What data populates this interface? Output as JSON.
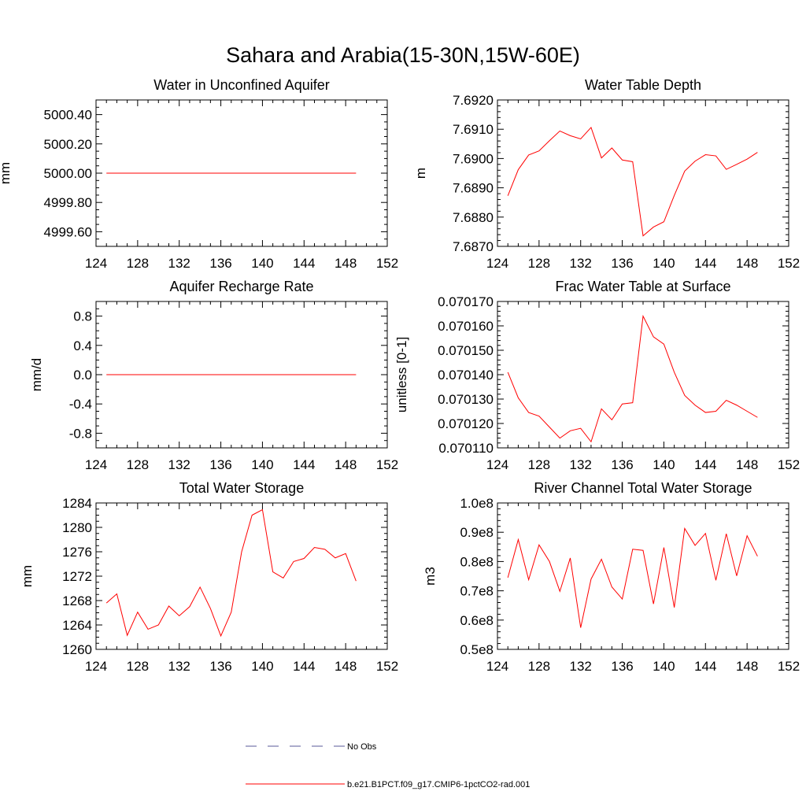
{
  "figure": {
    "title": "Sahara and Arabia(15-30N,15W-60E)"
  },
  "chart_data": [
    {
      "id": "water-in-unconfined-aquifer",
      "type": "line",
      "title": "Water in Unconfined Aquifer",
      "ylabel": "mm",
      "xlim": [
        124,
        152
      ],
      "xticks": [
        124,
        128,
        132,
        136,
        140,
        144,
        148,
        152
      ],
      "xminor": 1,
      "ylim": [
        4999.5,
        5000.5
      ],
      "yticks": [
        4999.6,
        4999.8,
        5000.0,
        5000.2,
        5000.4
      ],
      "ytick_labels": [
        "4999.60",
        "4999.80",
        "5000.00",
        "5000.20",
        "5000.40"
      ],
      "yminor": 0.05,
      "x": [
        125,
        126,
        127,
        128,
        129,
        130,
        131,
        132,
        133,
        134,
        135,
        136,
        137,
        138,
        139,
        140,
        141,
        142,
        143,
        144,
        145,
        146,
        147,
        148,
        149
      ],
      "series": [
        {
          "values": [
            5000,
            5000,
            5000,
            5000,
            5000,
            5000,
            5000,
            5000,
            5000,
            5000,
            5000,
            5000,
            5000,
            5000,
            5000,
            5000,
            5000,
            5000,
            5000,
            5000,
            5000,
            5000,
            5000,
            5000,
            5000
          ]
        }
      ]
    },
    {
      "id": "water-table-depth",
      "type": "line",
      "title": "Water Table Depth",
      "ylabel": "m",
      "xlim": [
        124,
        152
      ],
      "xticks": [
        124,
        128,
        132,
        136,
        140,
        144,
        148,
        152
      ],
      "xminor": 1,
      "ylim": [
        7.687,
        7.692
      ],
      "yticks": [
        7.687,
        7.688,
        7.689,
        7.69,
        7.691,
        7.692
      ],
      "ytick_labels": [
        "7.6870",
        "7.6880",
        "7.6890",
        "7.6900",
        "7.6910",
        "7.6920"
      ],
      "yminor": 0.0002,
      "x": [
        125,
        126,
        127,
        128,
        129,
        130,
        131,
        132,
        133,
        134,
        135,
        136,
        137,
        138,
        139,
        140,
        141,
        142,
        143,
        144,
        145,
        146,
        147,
        148,
        149
      ],
      "series": [
        {
          "values": [
            7.68873,
            7.68962,
            7.69012,
            7.69026,
            7.69061,
            7.69094,
            7.69078,
            7.69067,
            7.69106,
            7.69002,
            7.69036,
            7.68995,
            7.68989,
            7.68736,
            7.68766,
            7.68784,
            7.68874,
            7.68957,
            7.68991,
            7.69013,
            7.69009,
            7.68963,
            7.6898,
            7.68998,
            7.69021
          ]
        }
      ]
    },
    {
      "id": "aquifer-recharge-rate",
      "type": "line",
      "title": "Aquifer Recharge Rate",
      "ylabel": "mm/d",
      "xlim": [
        124,
        152
      ],
      "xticks": [
        124,
        128,
        132,
        136,
        140,
        144,
        148,
        152
      ],
      "xminor": 1,
      "ylim": [
        -1.0,
        1.0
      ],
      "yticks": [
        -0.8,
        -0.4,
        0.0,
        0.4,
        0.8
      ],
      "ytick_labels": [
        "-0.8",
        "-0.4",
        "0.0",
        "0.4",
        "0.8"
      ],
      "yminor": 0.1,
      "x": [
        125,
        126,
        127,
        128,
        129,
        130,
        131,
        132,
        133,
        134,
        135,
        136,
        137,
        138,
        139,
        140,
        141,
        142,
        143,
        144,
        145,
        146,
        147,
        148,
        149
      ],
      "series": [
        {
          "values": [
            0,
            0,
            0,
            0,
            0,
            0,
            0,
            0,
            0,
            0,
            0,
            0,
            0,
            0,
            0,
            0,
            0,
            0,
            0,
            0,
            0,
            0,
            0,
            0,
            0
          ]
        }
      ]
    },
    {
      "id": "frac-water-table-at-surface",
      "type": "line",
      "title": "Frac Water Table at Surface",
      "ylabel": "unitless [0-1]",
      "xlim": [
        124,
        152
      ],
      "xticks": [
        124,
        128,
        132,
        136,
        140,
        144,
        148,
        152
      ],
      "xminor": 1,
      "ylim": [
        0.07011,
        0.07017
      ],
      "yticks": [
        0.07011,
        0.07012,
        0.07013,
        0.07014,
        0.07015,
        0.07016,
        0.07017
      ],
      "ytick_labels": [
        "0.070110",
        "0.070120",
        "0.070130",
        "0.070140",
        "0.070150",
        "0.070160",
        "0.070170"
      ],
      "yminor": 2e-06,
      "x": [
        125,
        126,
        127,
        128,
        129,
        130,
        131,
        132,
        133,
        134,
        135,
        136,
        137,
        138,
        139,
        140,
        141,
        142,
        143,
        144,
        145,
        146,
        147,
        148,
        149
      ],
      "series": [
        {
          "values": [
            0.070141,
            0.0701305,
            0.0701245,
            0.070123,
            0.0701185,
            0.070114,
            0.070117,
            0.070118,
            0.0701125,
            0.070126,
            0.0701215,
            0.070128,
            0.0701285,
            0.070164,
            0.0701555,
            0.0701525,
            0.070141,
            0.0701315,
            0.0701275,
            0.0701245,
            0.070125,
            0.0701295,
            0.0701275,
            0.070125,
            0.0701225
          ]
        }
      ]
    },
    {
      "id": "total-water-storage",
      "type": "line",
      "title": "Total Water Storage",
      "ylabel": "mm",
      "xlim": [
        124,
        152
      ],
      "xticks": [
        124,
        128,
        132,
        136,
        140,
        144,
        148,
        152
      ],
      "xminor": 1,
      "ylim": [
        1260,
        1284
      ],
      "yticks": [
        1260,
        1264,
        1268,
        1272,
        1276,
        1280,
        1284
      ],
      "ytick_labels": [
        "1260",
        "1264",
        "1268",
        "1272",
        "1276",
        "1280",
        "1284"
      ],
      "yminor": 1,
      "x": [
        125,
        126,
        127,
        128,
        129,
        130,
        131,
        132,
        133,
        134,
        135,
        136,
        137,
        138,
        139,
        140,
        141,
        142,
        143,
        144,
        145,
        146,
        147,
        148,
        149
      ],
      "series": [
        {
          "values": [
            1267.6,
            1269.1,
            1262.3,
            1266.1,
            1263.3,
            1264.0,
            1267.1,
            1265.5,
            1267.0,
            1270.2,
            1266.7,
            1262.2,
            1266.1,
            1276.0,
            1282.0,
            1282.9,
            1272.7,
            1271.7,
            1274.4,
            1274.9,
            1276.7,
            1276.4,
            1275.0,
            1275.7,
            1271.2
          ]
        }
      ]
    },
    {
      "id": "river-channel-total-water-storage",
      "type": "line",
      "title": "River Channel Total Water Storage",
      "ylabel": "m3",
      "xlim": [
        124,
        152
      ],
      "xticks": [
        124,
        128,
        132,
        136,
        140,
        144,
        148,
        152
      ],
      "xminor": 1,
      "ylim": [
        50000000,
        100000000
      ],
      "yticks": [
        50000000,
        60000000,
        70000000,
        80000000,
        90000000,
        100000000
      ],
      "ytick_labels": [
        "0.5e8",
        "0.6e8",
        "0.7e8",
        "0.8e8",
        "0.9e8",
        "1.0e8"
      ],
      "yminor": 2000000,
      "x": [
        125,
        126,
        127,
        128,
        129,
        130,
        131,
        132,
        133,
        134,
        135,
        136,
        137,
        138,
        139,
        140,
        141,
        142,
        143,
        144,
        145,
        146,
        147,
        148,
        149
      ],
      "series": [
        {
          "values": [
            74500000,
            87500000,
            73800000,
            85700000,
            80000000,
            69800000,
            81200000,
            57400000,
            74000000,
            80800000,
            71300000,
            67200000,
            84200000,
            83800000,
            65500000,
            84800000,
            64300000,
            91300000,
            85500000,
            89600000,
            73600000,
            89500000,
            75100000,
            88800000,
            81800000
          ]
        }
      ]
    }
  ],
  "legend": {
    "items": [
      {
        "label": "No Obs",
        "color": "#5a5a9a",
        "style": "dashed"
      },
      {
        "label": "b.e21.B1PCT.f09_g17.CMIP6-1pctCO2-rad.001",
        "color": "#ff0000",
        "style": "solid"
      }
    ]
  },
  "colors": {
    "series": "#ff0000",
    "axes": "#000000"
  }
}
